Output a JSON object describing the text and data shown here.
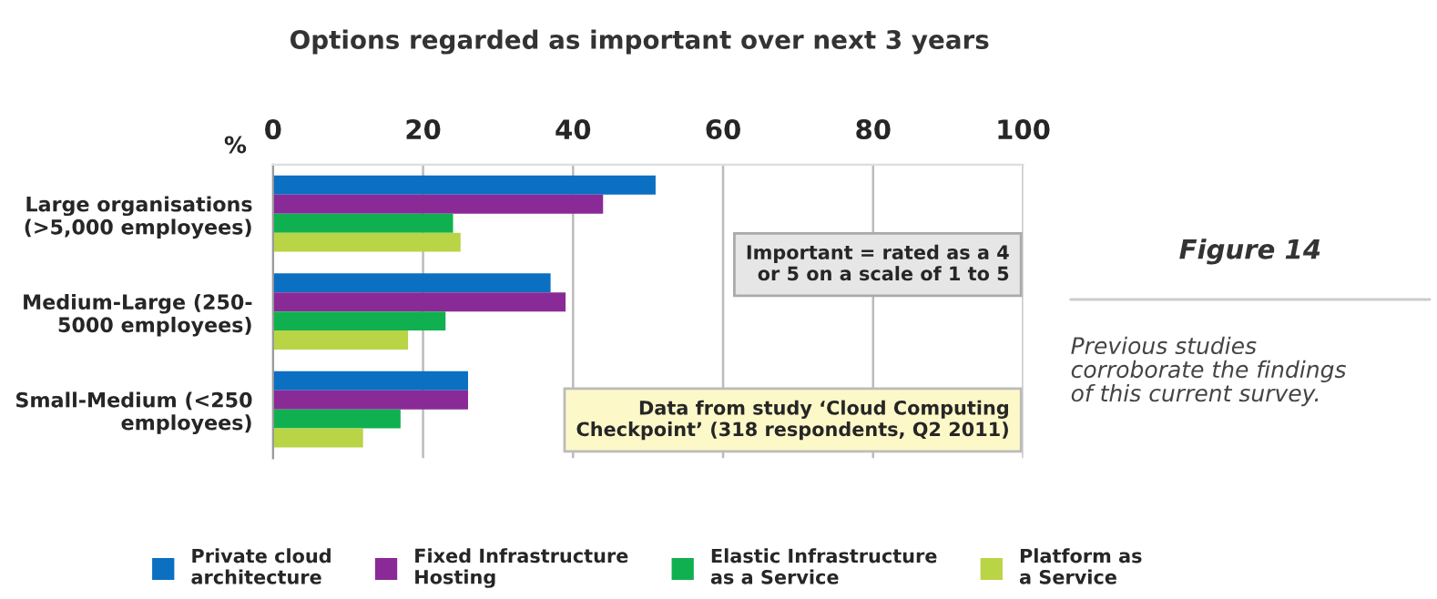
{
  "chart_data": {
    "type": "bar",
    "orientation": "horizontal",
    "title": "Options regarded as important over next 3 years",
    "xlabel": "%",
    "categories": [
      "Large organisations\n(>5,000 employees)",
      "Medium-Large (250-\n5000 employees)",
      "Small-Medium (<250\nemployees)"
    ],
    "series": [
      {
        "name": "Private cloud\narchitecture",
        "color": "#0b6fc2",
        "values": [
          51,
          37,
          26
        ]
      },
      {
        "name": "Fixed Infrastructure\nHosting",
        "color": "#8a2a96",
        "values": [
          44,
          39,
          26
        ]
      },
      {
        "name": "Elastic Infrastructure\nas a Service",
        "color": "#10b050",
        "values": [
          24,
          23,
          17
        ]
      },
      {
        "name": "Platform as\na Service",
        "color": "#b9d444",
        "values": [
          25,
          18,
          12
        ]
      }
    ],
    "xlim": [
      0,
      100
    ],
    "xticks": [
      0,
      20,
      40,
      60,
      80,
      100
    ],
    "grid": "x",
    "legend": "bottom",
    "annotations": [
      "Important = rated as a 4\nor 5 on a scale of 1 to 5",
      "Data from study ‘Cloud Computing\nCheckpoint’ (318 respondents, Q2 2011)",
      "Figure 14",
      "Previous studies\ncorroborate the findings\nof this current survey."
    ]
  }
}
